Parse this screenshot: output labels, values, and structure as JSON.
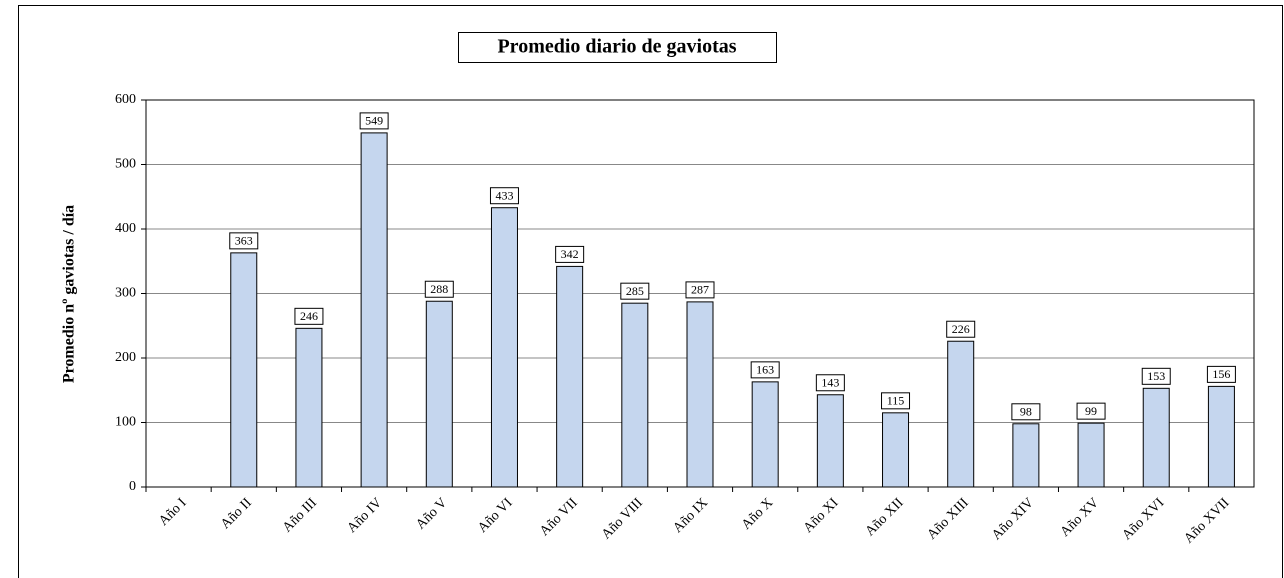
{
  "chart_data": {
    "type": "bar",
    "title": "Promedio diario de gaviotas",
    "y_label": "Promedio nº gaviotas / día",
    "categories": [
      "Año I",
      "Año II",
      "Año III",
      "Año IV",
      "Año V",
      "Año VI",
      "Año VII",
      "Año VIII",
      "Año IX",
      "Año X",
      "Año XI",
      "Año XII",
      "Año XIII",
      "Año XIV",
      "Año XV",
      "Año XVI",
      "Año XVII"
    ],
    "values": [
      null,
      363,
      246,
      549,
      288,
      433,
      342,
      285,
      287,
      163,
      143,
      115,
      226,
      98,
      99,
      153,
      156
    ],
    "color": "#c5d6ee",
    "ylim": [
      0,
      600
    ],
    "yticks": [
      0,
      100,
      200,
      300,
      400,
      500,
      600
    ],
    "grid": true
  }
}
